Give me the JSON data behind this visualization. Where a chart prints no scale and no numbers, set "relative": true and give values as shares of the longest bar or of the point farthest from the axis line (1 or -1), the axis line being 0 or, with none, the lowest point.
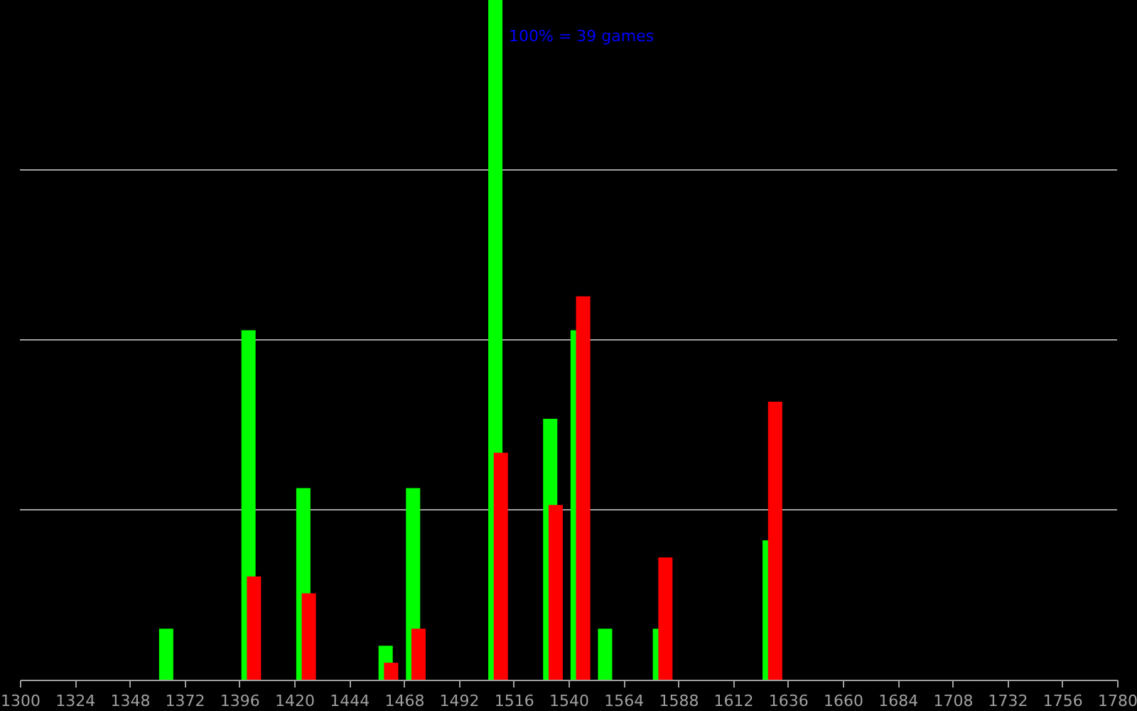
{
  "chart_data": {
    "type": "bar",
    "relative": true,
    "annotations": [
      "100% = 39 games"
    ],
    "xlim": [
      1300,
      1780
    ],
    "xticks": [
      1300,
      1324,
      1348,
      1372,
      1396,
      1420,
      1444,
      1468,
      1492,
      1516,
      1540,
      1564,
      1588,
      1612,
      1636,
      1660,
      1684,
      1708,
      1732,
      1756,
      1780
    ],
    "grid": "y",
    "series": [
      {
        "color": "#00ff00",
        "x": [
          1364,
          1400,
          1424,
          1460,
          1472,
          1508,
          1532,
          1544,
          1556,
          1580,
          1628
        ],
        "values": [
          0.075,
          0.514,
          0.282,
          0.05,
          0.282,
          1,
          0.384,
          0.514,
          0.075,
          0.075,
          0.205
        ]
      },
      {
        "color": "#ff0000",
        "x": [
          1402.4,
          1426.4,
          1462.4,
          1474.4,
          1510.4,
          1534.4,
          1546.4,
          1582.4,
          1630.4
        ],
        "values": [
          0.152,
          0.127,
          0.025,
          0.075,
          0.334,
          0.257,
          0.564,
          0.18,
          0.409
        ]
      }
    ]
  }
}
